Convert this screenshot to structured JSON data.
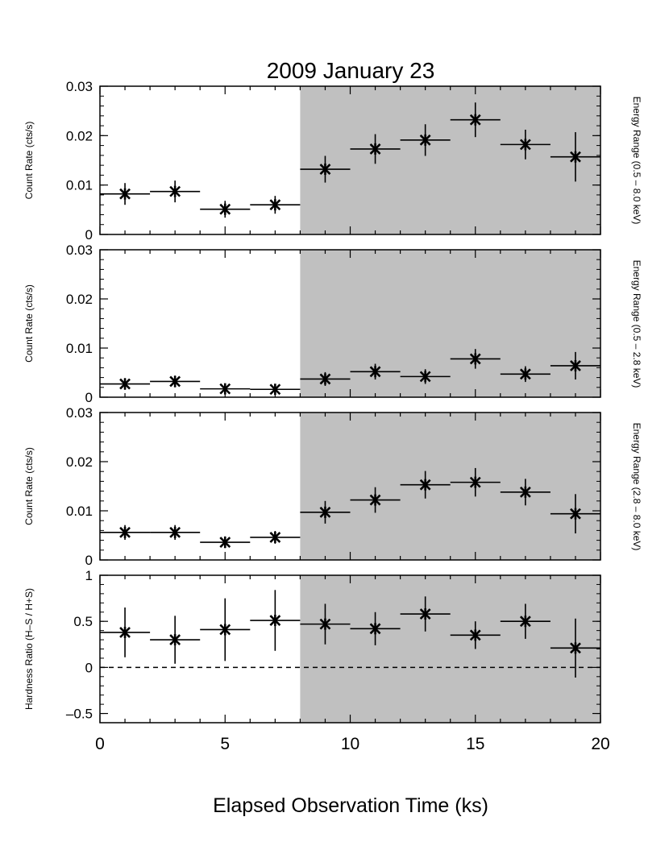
{
  "chart_data": {
    "type": "scatter",
    "title": "2009 January 23",
    "xlabel": "Elapsed Observation Time (ks)",
    "xlim": [
      0,
      20
    ],
    "x_ticks": [
      "0",
      "5",
      "10",
      "15",
      "20"
    ],
    "shaded_region": {
      "x": [
        8,
        20
      ],
      "color": "#c0c0c0"
    },
    "panels": [
      {
        "ylabel": "Count Rate (cts/s)",
        "right_label": "Energy Range (0.5 – 8.0 keV)",
        "ylim": [
          0,
          0.03
        ],
        "y_ticks": [
          "0",
          "0.01",
          "0.02",
          "0.03"
        ],
        "x": [
          1,
          3,
          5,
          7,
          9,
          11,
          13,
          15,
          17,
          19
        ],
        "y": [
          0.0082,
          0.0087,
          0.0051,
          0.006,
          0.0132,
          0.0173,
          0.0191,
          0.0232,
          0.0182,
          0.0157
        ],
        "y_err": [
          0.0022,
          0.0022,
          0.0017,
          0.0018,
          0.0027,
          0.003,
          0.0032,
          0.0035,
          0.003,
          0.005
        ],
        "x_err": 1
      },
      {
        "ylabel": "Count Rate (cts/s)",
        "right_label": "Energy Range (0.5 – 2.8 keV)",
        "ylim": [
          0,
          0.03
        ],
        "y_ticks": [
          "0",
          "0.01",
          "0.02",
          "0.03"
        ],
        "x": [
          1,
          3,
          5,
          7,
          9,
          11,
          13,
          15,
          17,
          19
        ],
        "y": [
          0.0027,
          0.0032,
          0.0017,
          0.0016,
          0.0037,
          0.0052,
          0.0042,
          0.0078,
          0.0047,
          0.0064
        ],
        "y_err": [
          0.0012,
          0.0012,
          0.001,
          0.001,
          0.0014,
          0.0016,
          0.0015,
          0.002,
          0.0016,
          0.0028
        ],
        "x_err": 1
      },
      {
        "ylabel": "Count Rate (cts/s)",
        "right_label": "Energy Range (2.8 – 8.0 keV)",
        "ylim": [
          0,
          0.03
        ],
        "y_ticks": [
          "0",
          "0.01",
          "0.02",
          "0.03"
        ],
        "x": [
          1,
          3,
          5,
          7,
          9,
          11,
          13,
          15,
          17,
          19
        ],
        "y": [
          0.0056,
          0.0056,
          0.0036,
          0.0046,
          0.0097,
          0.0122,
          0.0153,
          0.0158,
          0.0138,
          0.0094
        ],
        "y_err": [
          0.0015,
          0.0015,
          0.0012,
          0.0013,
          0.0023,
          0.0026,
          0.0028,
          0.0029,
          0.0027,
          0.004
        ],
        "x_err": 1
      },
      {
        "ylabel": "Hardness Ratio (H–S / H+S)",
        "right_label": "",
        "ylim": [
          -0.6,
          1.0
        ],
        "y_ticks": [
          "1",
          "0.5",
          "0",
          "–0.5"
        ],
        "y_tick_values": [
          1,
          0.5,
          0,
          -0.5
        ],
        "reference_line": {
          "y": 0,
          "style": "dashed"
        },
        "x": [
          1,
          3,
          5,
          7,
          9,
          11,
          13,
          15,
          17,
          19
        ],
        "y": [
          0.38,
          0.3,
          0.41,
          0.51,
          0.47,
          0.42,
          0.58,
          0.35,
          0.5,
          0.21
        ],
        "y_err": [
          0.27,
          0.26,
          0.34,
          0.33,
          0.22,
          0.18,
          0.19,
          0.15,
          0.19,
          0.32
        ],
        "x_err": 1
      }
    ]
  }
}
